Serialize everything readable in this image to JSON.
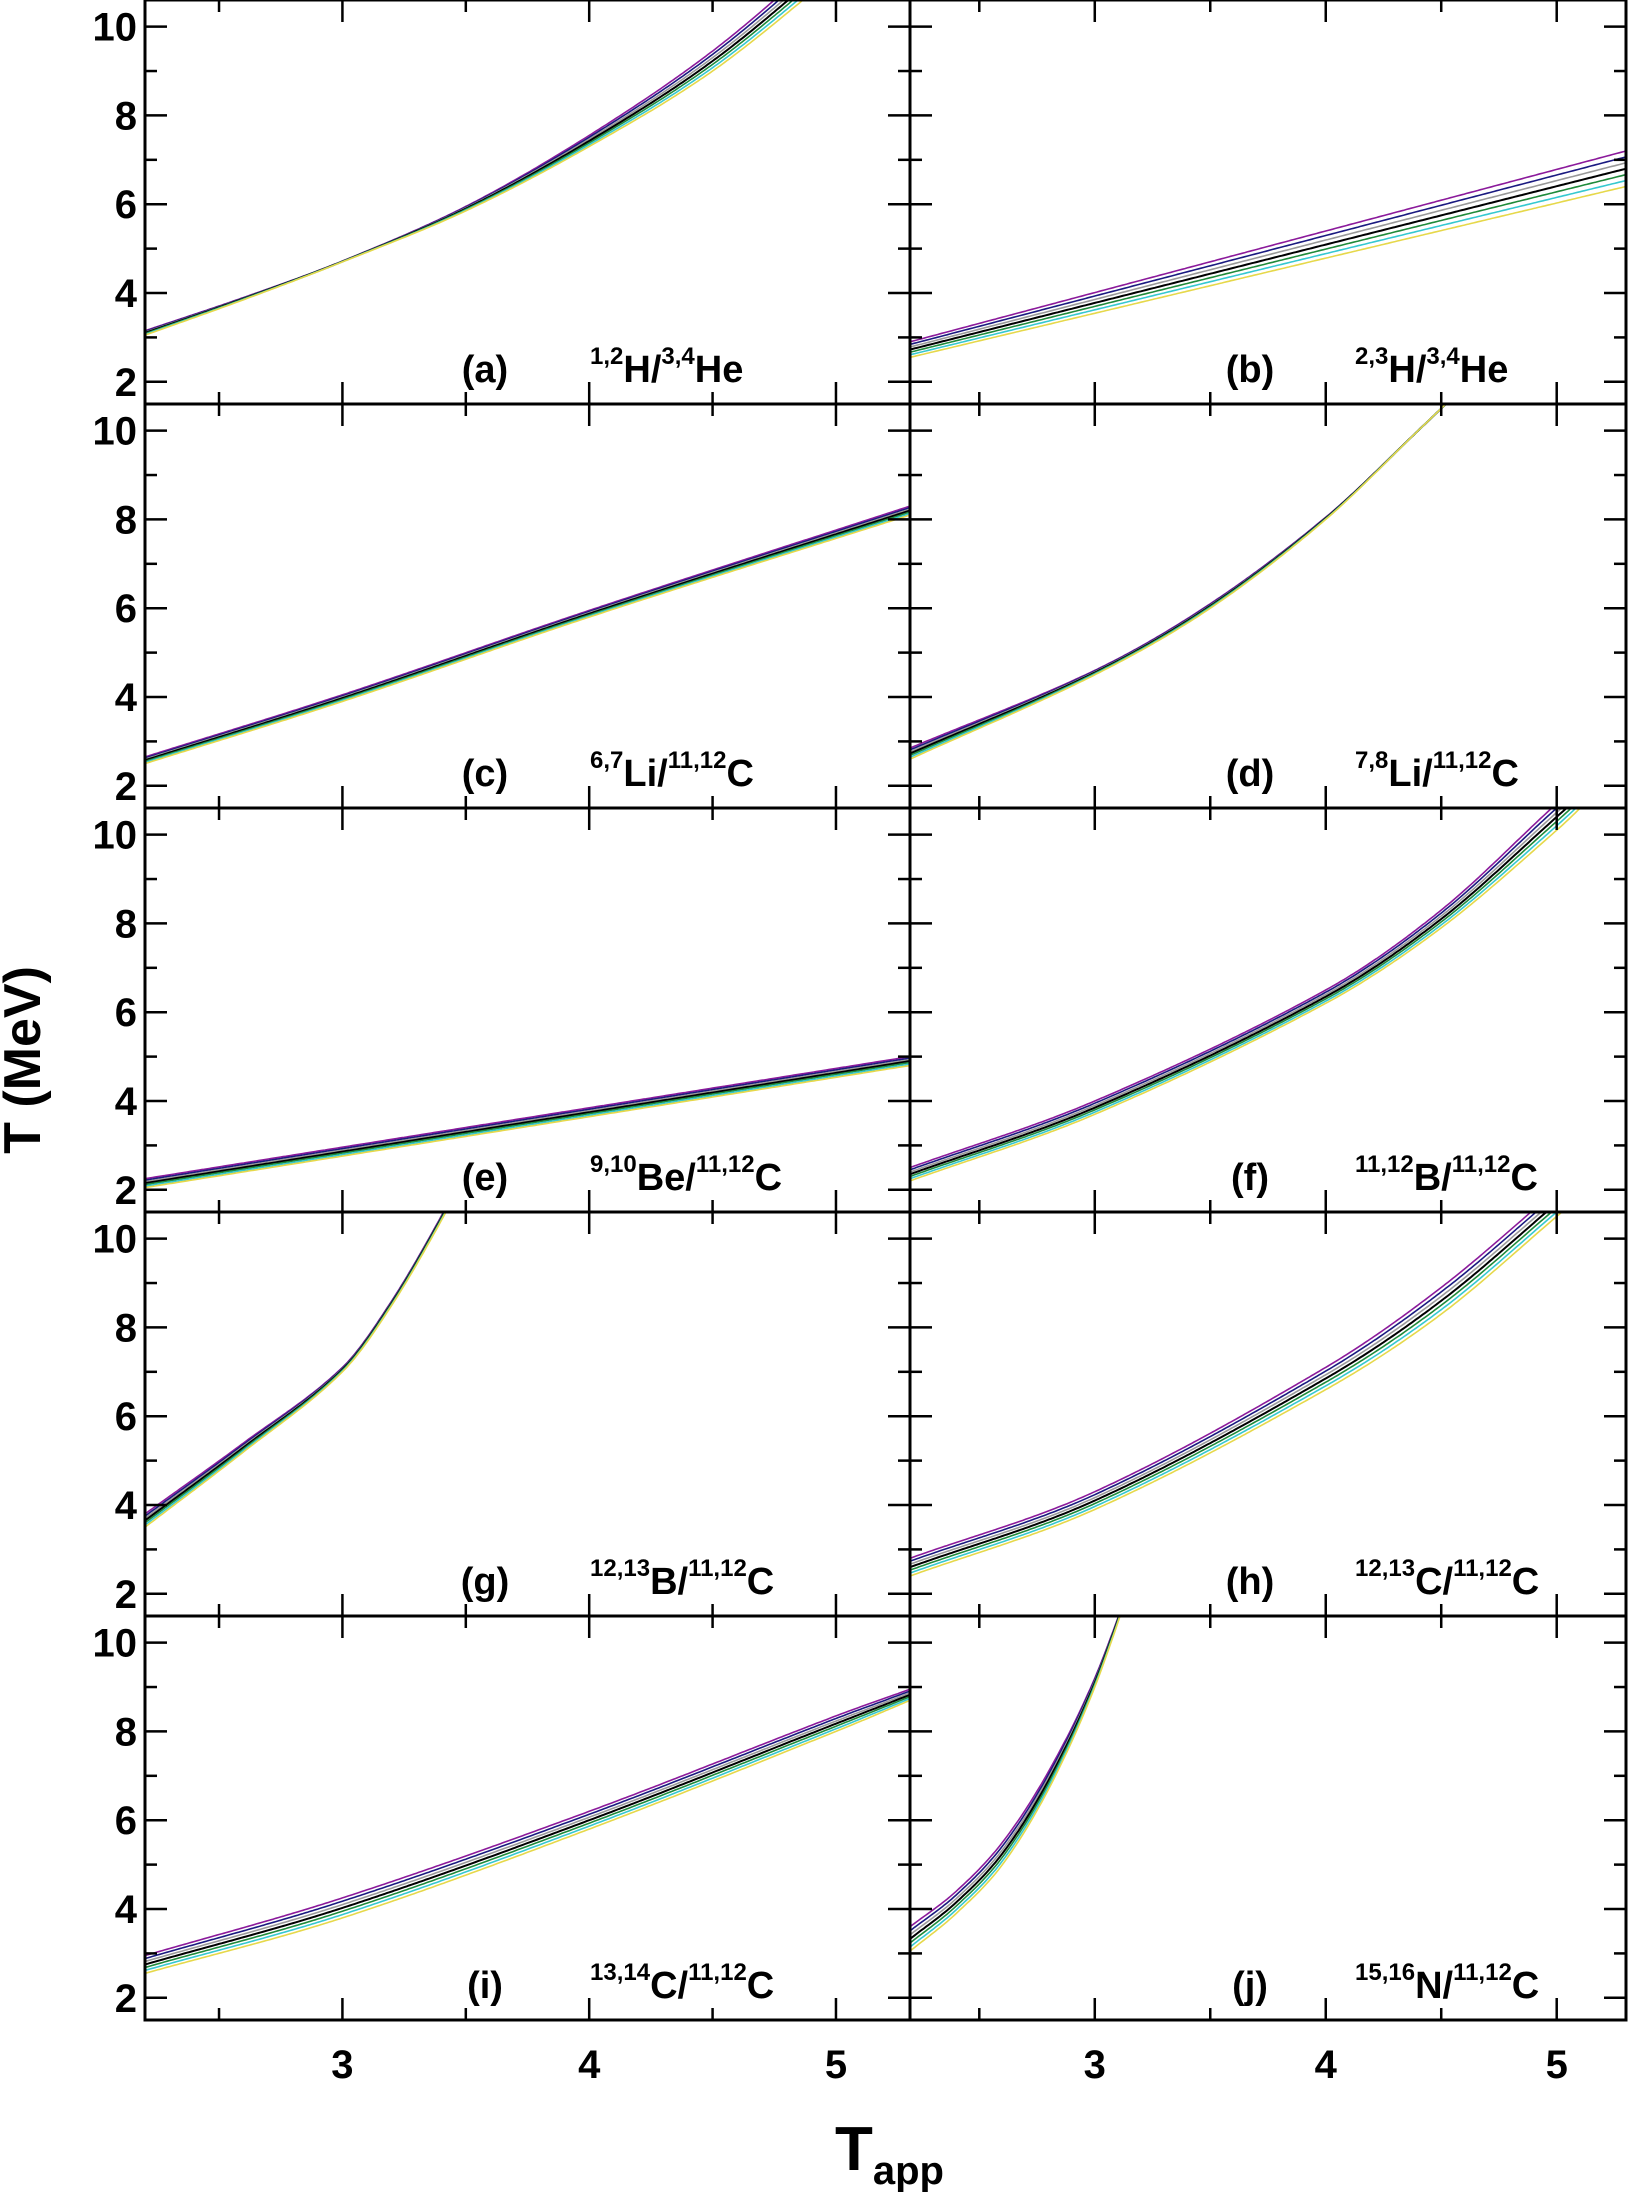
{
  "chart_data": {
    "type": "line",
    "ylabel": "T (MeV)",
    "xlabel": "T",
    "xlabel_subscript": "app",
    "xlim": [
      2.2,
      5.3
    ],
    "ylim": [
      1.5,
      10.6
    ],
    "x_ticks": [
      "3",
      "4",
      "5"
    ],
    "y_ticks": [
      "2",
      "4",
      "6",
      "8",
      "10"
    ],
    "series_colors": [
      "#8b1a9b",
      "#1a1a80",
      "#999999",
      "#000000",
      "#1f8a3a",
      "#35c8d0",
      "#e6d84a"
    ],
    "panels": [
      {
        "tag": "(a)",
        "num_sup": "1,2",
        "num": "H/",
        "den_sup": "3,4",
        "den": "He",
        "x": [
          2.2,
          2.6,
          3,
          3.5,
          4,
          4.5,
          5
        ],
        "lower": [
          3.05,
          3.85,
          4.7,
          5.85,
          7.3,
          9.0,
          11.2
        ],
        "upper": [
          3.15,
          3.9,
          4.72,
          5.95,
          7.55,
          9.45,
          11.8
        ]
      },
      {
        "tag": "(b)",
        "num_sup": "2,3",
        "num": "H/",
        "den_sup": "3,4",
        "den": "He",
        "x": [
          2.2,
          5.3
        ],
        "lower": [
          2.55,
          6.4
        ],
        "upper": [
          2.9,
          7.2
        ]
      },
      {
        "tag": "(c)",
        "num_sup": "6,7",
        "num": "Li/",
        "den_sup": "11,12",
        "den": "C",
        "x": [
          2.2,
          3,
          4,
          5.3
        ],
        "lower": [
          2.5,
          3.9,
          5.8,
          8.1
        ],
        "upper": [
          2.65,
          4.05,
          5.95,
          8.3
        ]
      },
      {
        "tag": "(d)",
        "num_sup": "7,8",
        "num": "Li/",
        "den_sup": "11,12",
        "den": "C",
        "x": [
          2.2,
          3,
          3.5,
          4,
          4.4,
          4.7
        ],
        "lower": [
          2.6,
          4.5,
          6.0,
          8.0,
          10.0,
          11.5
        ],
        "upper": [
          2.85,
          4.6,
          6.1,
          8.05,
          10.0,
          11.5
        ]
      },
      {
        "tag": "(e)",
        "num_sup": "9,10",
        "num": "Be/",
        "den_sup": "11,12",
        "den": "C",
        "x": [
          2.2,
          5.3
        ],
        "lower": [
          2.05,
          4.8
        ],
        "upper": [
          2.25,
          5.0
        ]
      },
      {
        "tag": "(f)",
        "num_sup": "11,12",
        "num": "B/",
        "den_sup": "11,12",
        "den": "C",
        "x": [
          2.2,
          3,
          4,
          4.5,
          5,
          5.2
        ],
        "lower": [
          2.2,
          3.7,
          6.2,
          7.9,
          10.1,
          11.1
        ],
        "upper": [
          2.5,
          4.0,
          6.5,
          8.3,
          10.7,
          11.6
        ]
      },
      {
        "tag": "(g)",
        "num_sup": "12,13",
        "num": "B/",
        "den_sup": "11,12",
        "den": "C",
        "x": [
          2.2,
          2.6,
          3,
          3.2,
          3.4,
          3.5
        ],
        "lower": [
          3.5,
          5.2,
          7.0,
          8.5,
          10.4,
          11.5
        ],
        "upper": [
          3.8,
          5.4,
          7.1,
          8.6,
          10.5,
          11.6
        ]
      },
      {
        "tag": "(h)",
        "num_sup": "12,13",
        "num": "C/",
        "den_sup": "11,12",
        "den": "C",
        "x": [
          2.2,
          3,
          4,
          4.5,
          5,
          5.2
        ],
        "lower": [
          2.4,
          3.9,
          6.6,
          8.3,
          10.5,
          11.4
        ],
        "upper": [
          2.8,
          4.3,
          7.1,
          8.9,
          11.1,
          12.0
        ]
      },
      {
        "tag": "(i)",
        "num_sup": "13,14",
        "num": "C/",
        "den_sup": "11,12",
        "den": "C",
        "x": [
          2.2,
          3,
          4,
          5,
          5.3
        ],
        "lower": [
          2.55,
          3.8,
          5.8,
          8.0,
          8.7
        ],
        "upper": [
          2.95,
          4.25,
          6.2,
          8.35,
          8.95
        ]
      },
      {
        "tag": "(j)",
        "num_sup": "15,16",
        "num": "N/",
        "den_sup": "11,12",
        "den": "C",
        "x": [
          2.2,
          2.4,
          2.6,
          2.8,
          3.0,
          3.2
        ],
        "lower": [
          3.05,
          3.9,
          5.0,
          6.7,
          9.0,
          12.0
        ],
        "upper": [
          3.6,
          4.4,
          5.5,
          7.1,
          9.2,
          12.0
        ]
      }
    ]
  }
}
